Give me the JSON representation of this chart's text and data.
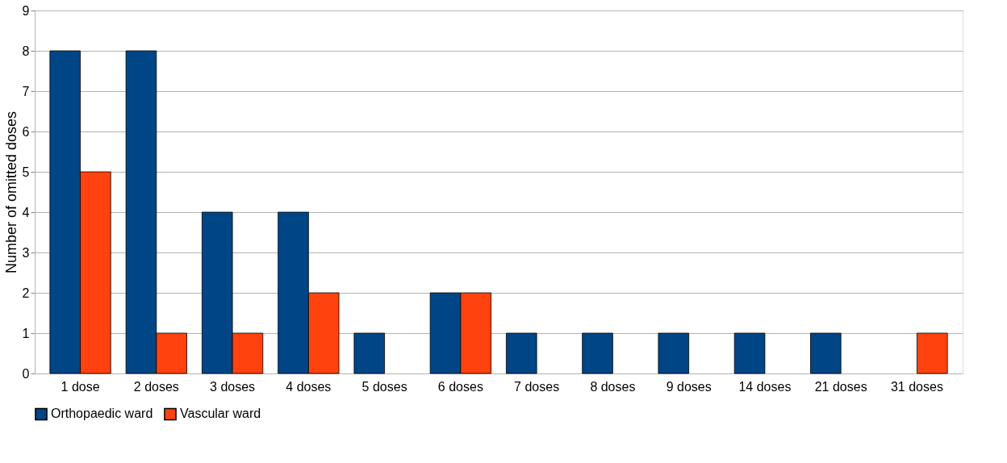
{
  "chart_data": {
    "type": "bar",
    "ylabel": "Number of omitted doses",
    "categories": [
      "1 dose",
      "2 doses",
      "3 doses",
      "4 doses",
      "5 doses",
      "6 doses",
      "7 doses",
      "8 doses",
      "9 doses",
      "14 doses",
      "21 doses",
      "31 doses"
    ],
    "series": [
      {
        "name": "Orthopaedic ward",
        "color": "#004586",
        "values": [
          8,
          8,
          4,
          4,
          1,
          2,
          1,
          1,
          1,
          1,
          1,
          0
        ]
      },
      {
        "name": "Vascular ward",
        "color": "#ff420e",
        "values": [
          5,
          1,
          1,
          2,
          0,
          2,
          0,
          0,
          0,
          0,
          0,
          1
        ]
      }
    ],
    "ylim": [
      0,
      9
    ],
    "yticks": [
      0,
      1,
      2,
      3,
      4,
      5,
      6,
      7,
      8,
      9
    ],
    "grid": "y",
    "legend": "bottom"
  }
}
